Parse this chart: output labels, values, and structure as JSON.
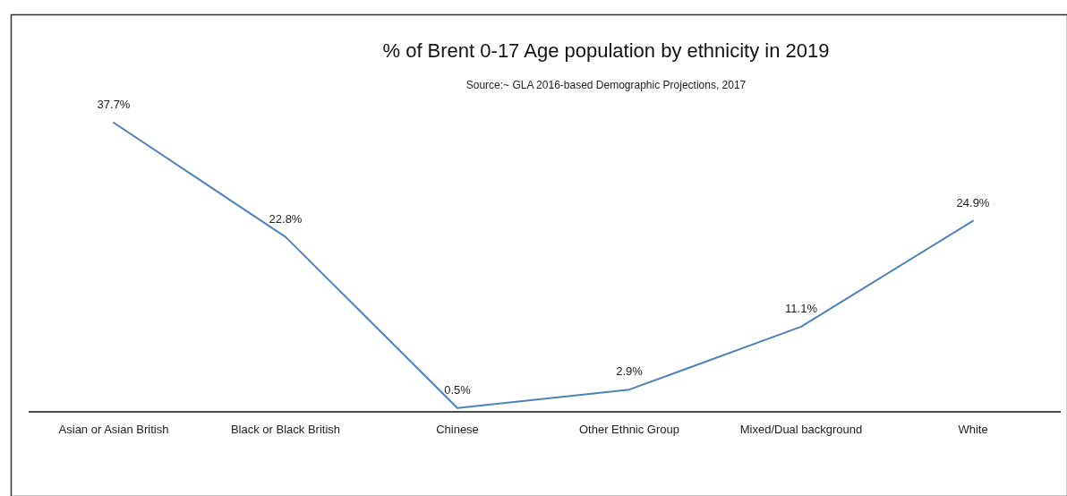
{
  "chart_data": {
    "type": "line",
    "title": "% of Brent 0-17 Age population by ethnicity in 2019",
    "annotations": [
      "Source:~ GLA 2016-based Demographic Projections, 2017"
    ],
    "categories": [
      "Asian or Asian British",
      "Black or Black British",
      "Chinese",
      "Other Ethnic Group",
      "Mixed/Dual background",
      "White"
    ],
    "values": [
      37.7,
      22.8,
      0.5,
      2.9,
      11.1,
      24.9
    ],
    "color": "#4f81bd",
    "value_labels": [
      "37.7%",
      "22.8%",
      "0.5%",
      "2.9%",
      "11.1%",
      "24.9%"
    ]
  }
}
